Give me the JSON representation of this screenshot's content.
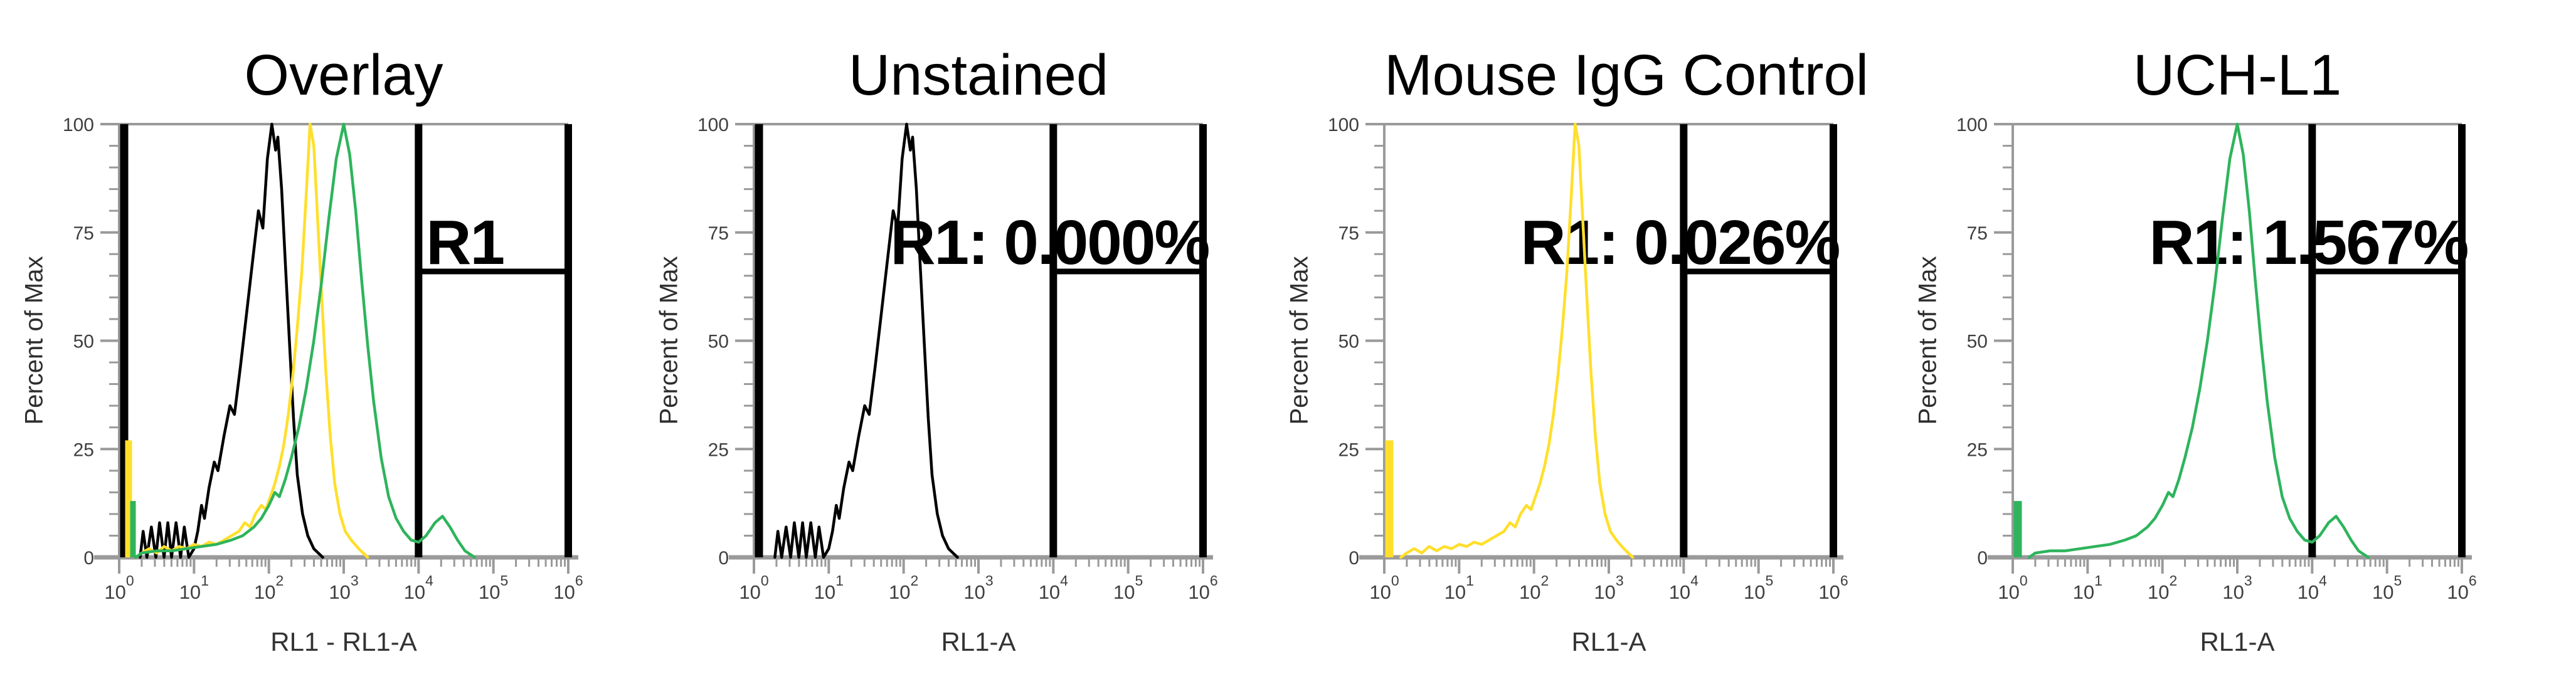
{
  "colors": {
    "background": "#ffffff",
    "black": "#000000",
    "yellow": "#ffdf2b",
    "green": "#2eb45c",
    "axis": "#9a9a9a",
    "tick_text": "#3f3f3f",
    "label_text": "#333333",
    "gate": "#000000"
  },
  "axes": {
    "y_label": "Percent of Max",
    "y_tick_values": [
      0,
      25,
      50,
      75,
      100
    ],
    "y_minor_step": 5,
    "x_tick_base": "10",
    "x_tick_exponents": [
      0,
      1,
      2,
      3,
      4,
      5,
      6
    ],
    "x_scale": "log10"
  },
  "panels": [
    {
      "title": "Overlay",
      "x_label": "RL1 - RL1-A",
      "gate_label": "R1",
      "gate_label_log_x": 4.1,
      "gate_label_anchor": "start",
      "series_ids": [
        "unstained",
        "igg",
        "uchl1"
      ]
    },
    {
      "title": "Unstained",
      "x_label": "RL1-A",
      "gate_label": "R1: 0.000%",
      "gate_label_log_x": 3.95,
      "gate_label_anchor": "middle",
      "series_ids": [
        "unstained"
      ]
    },
    {
      "title": "Mouse IgG Control",
      "x_label": "RL1-A",
      "gate_label": "R1: 0.026%",
      "gate_label_log_x": 3.95,
      "gate_label_anchor": "middle",
      "series_ids": [
        "igg"
      ]
    },
    {
      "title": "UCH-L1",
      "x_label": "RL1-A",
      "gate_label": "R1: 1.567%",
      "gate_label_log_x": 3.95,
      "gate_label_anchor": "middle",
      "series_ids": [
        "uchl1"
      ]
    }
  ],
  "chart_data": {
    "type": "line",
    "title": "Flow cytometry histograms, Percent of Max vs RL1-A (log scale)",
    "xlabel": "RL1-A",
    "ylabel": "Percent of Max",
    "x_axis": {
      "scale": "log10",
      "decade_range": [
        0,
        6
      ],
      "tick_labels": [
        "10^0",
        "10^1",
        "10^2",
        "10^3",
        "10^4",
        "10^5",
        "10^6"
      ]
    },
    "y_axis": {
      "range": [
        0,
        100
      ],
      "ticks": [
        0,
        25,
        50,
        75,
        100
      ]
    },
    "grid": false,
    "legend": "none (one titled panel per sample; Overlay panel shows all three curves)",
    "gate": {
      "name": "R1",
      "x_log_range": [
        4,
        6
      ],
      "bracket_y_percent": 66,
      "percent_in_gate": {
        "Unstained": "0.000%",
        "Mouse IgG Control": "0.026%",
        "UCH-L1": "1.567%"
      }
    },
    "series": [
      {
        "id": "unstained",
        "name": "Unstained",
        "color": "#000000",
        "left_edge_spike_percent": 100,
        "points_log10x_percent": [
          [
            0.28,
            0
          ],
          [
            0.32,
            6
          ],
          [
            0.37,
            0
          ],
          [
            0.43,
            7
          ],
          [
            0.49,
            0
          ],
          [
            0.54,
            8
          ],
          [
            0.6,
            0
          ],
          [
            0.65,
            8
          ],
          [
            0.7,
            0
          ],
          [
            0.76,
            8
          ],
          [
            0.82,
            0
          ],
          [
            0.87,
            7
          ],
          [
            0.93,
            0
          ],
          [
            1.0,
            2
          ],
          [
            1.05,
            6
          ],
          [
            1.1,
            12
          ],
          [
            1.14,
            9
          ],
          [
            1.2,
            16
          ],
          [
            1.27,
            22
          ],
          [
            1.32,
            20
          ],
          [
            1.4,
            28
          ],
          [
            1.48,
            35
          ],
          [
            1.54,
            33
          ],
          [
            1.62,
            44
          ],
          [
            1.7,
            56
          ],
          [
            1.78,
            68
          ],
          [
            1.86,
            80
          ],
          [
            1.92,
            76
          ],
          [
            1.98,
            92
          ],
          [
            2.04,
            100
          ],
          [
            2.09,
            94
          ],
          [
            2.12,
            97
          ],
          [
            2.17,
            85
          ],
          [
            2.22,
            68
          ],
          [
            2.28,
            48
          ],
          [
            2.33,
            32
          ],
          [
            2.38,
            19
          ],
          [
            2.45,
            10
          ],
          [
            2.52,
            5
          ],
          [
            2.6,
            2
          ],
          [
            2.72,
            0
          ]
        ]
      },
      {
        "id": "igg",
        "name": "Mouse IgG Control",
        "color": "#ffdf2b",
        "left_edge_spike_percent": 27,
        "points_log10x_percent": [
          [
            0.22,
            0
          ],
          [
            0.3,
            1
          ],
          [
            0.4,
            2
          ],
          [
            0.5,
            1
          ],
          [
            0.6,
            2.5
          ],
          [
            0.7,
            1.5
          ],
          [
            0.8,
            2.5
          ],
          [
            0.9,
            2
          ],
          [
            1.0,
            3
          ],
          [
            1.1,
            2.5
          ],
          [
            1.2,
            3.5
          ],
          [
            1.3,
            3
          ],
          [
            1.4,
            4
          ],
          [
            1.5,
            5
          ],
          [
            1.6,
            6
          ],
          [
            1.68,
            8
          ],
          [
            1.75,
            7
          ],
          [
            1.82,
            10
          ],
          [
            1.9,
            12
          ],
          [
            1.96,
            11
          ],
          [
            2.02,
            14
          ],
          [
            2.08,
            17
          ],
          [
            2.14,
            21
          ],
          [
            2.2,
            26
          ],
          [
            2.26,
            33
          ],
          [
            2.32,
            42
          ],
          [
            2.38,
            53
          ],
          [
            2.44,
            66
          ],
          [
            2.5,
            84
          ],
          [
            2.55,
            100
          ],
          [
            2.6,
            95
          ],
          [
            2.64,
            82
          ],
          [
            2.7,
            62
          ],
          [
            2.76,
            43
          ],
          [
            2.82,
            28
          ],
          [
            2.88,
            17
          ],
          [
            2.95,
            10
          ],
          [
            3.02,
            6
          ],
          [
            3.1,
            4
          ],
          [
            3.2,
            2
          ],
          [
            3.32,
            0
          ]
        ]
      },
      {
        "id": "uchl1",
        "name": "UCH-L1",
        "color": "#2eb45c",
        "left_edge_spike_percent": 13,
        "points_log10x_percent": [
          [
            0.22,
            0
          ],
          [
            0.3,
            1
          ],
          [
            0.5,
            1.5
          ],
          [
            0.7,
            1.5
          ],
          [
            0.9,
            2
          ],
          [
            1.1,
            2.5
          ],
          [
            1.3,
            3
          ],
          [
            1.5,
            4
          ],
          [
            1.65,
            5
          ],
          [
            1.8,
            7
          ],
          [
            1.9,
            9
          ],
          [
            2.0,
            12
          ],
          [
            2.08,
            15
          ],
          [
            2.14,
            14
          ],
          [
            2.22,
            18
          ],
          [
            2.3,
            23
          ],
          [
            2.4,
            30
          ],
          [
            2.5,
            39
          ],
          [
            2.6,
            50
          ],
          [
            2.7,
            63
          ],
          [
            2.8,
            78
          ],
          [
            2.9,
            92
          ],
          [
            3.0,
            100
          ],
          [
            3.08,
            93
          ],
          [
            3.16,
            80
          ],
          [
            3.24,
            64
          ],
          [
            3.32,
            49
          ],
          [
            3.4,
            36
          ],
          [
            3.5,
            23
          ],
          [
            3.6,
            14
          ],
          [
            3.7,
            9
          ],
          [
            3.8,
            6
          ],
          [
            3.9,
            4
          ],
          [
            4.0,
            3.5
          ],
          [
            4.1,
            5
          ],
          [
            4.22,
            8
          ],
          [
            4.32,
            9.5
          ],
          [
            4.42,
            7
          ],
          [
            4.52,
            4
          ],
          [
            4.62,
            1.5
          ],
          [
            4.75,
            0
          ]
        ]
      }
    ]
  }
}
